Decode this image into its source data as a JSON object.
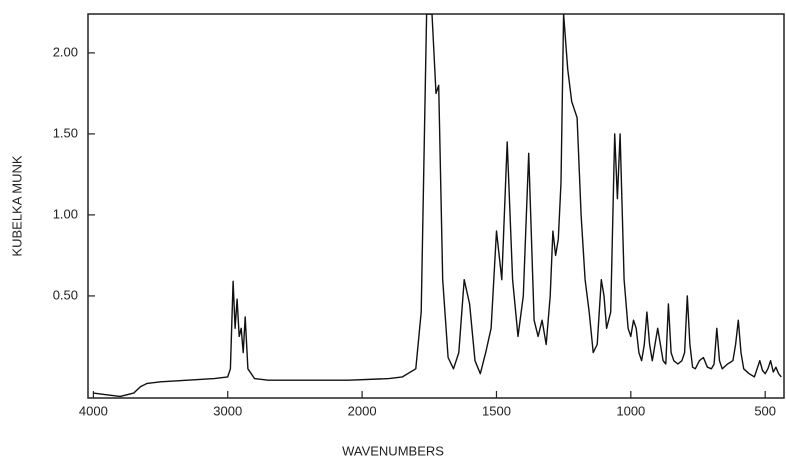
{
  "chart_data": {
    "type": "line",
    "x_label": "WAVENUMBERS",
    "y_label": "KUBELKA MUNK",
    "x": [
      4000,
      3900,
      3800,
      3700,
      3650,
      3600,
      3500,
      3300,
      3100,
      3000,
      2980,
      2960,
      2945,
      2930,
      2915,
      2900,
      2885,
      2870,
      2850,
      2800,
      2700,
      2400,
      2100,
      1900,
      1850,
      1800,
      1780,
      1760,
      1740,
      1725,
      1715,
      1700,
      1680,
      1660,
      1640,
      1620,
      1600,
      1580,
      1560,
      1540,
      1520,
      1500,
      1480,
      1460,
      1440,
      1420,
      1400,
      1380,
      1360,
      1345,
      1330,
      1315,
      1300,
      1290,
      1280,
      1270,
      1260,
      1250,
      1235,
      1220,
      1200,
      1185,
      1170,
      1155,
      1140,
      1125,
      1110,
      1100,
      1090,
      1075,
      1060,
      1050,
      1040,
      1025,
      1010,
      1000,
      990,
      980,
      970,
      960,
      950,
      940,
      930,
      920,
      900,
      890,
      880,
      870,
      860,
      850,
      840,
      825,
      810,
      800,
      790,
      780,
      770,
      760,
      745,
      730,
      715,
      700,
      690,
      680,
      670,
      660,
      640,
      620,
      610,
      600,
      590,
      580,
      560,
      540,
      530,
      520,
      510,
      500,
      490,
      480,
      470,
      460,
      450,
      440
    ],
    "values": [
      -0.1,
      -0.11,
      -0.12,
      -0.1,
      -0.06,
      -0.04,
      -0.03,
      -0.02,
      -0.01,
      0.0,
      0.05,
      0.59,
      0.3,
      0.48,
      0.25,
      0.3,
      0.15,
      0.37,
      0.05,
      -0.01,
      -0.02,
      -0.02,
      -0.02,
      -0.01,
      0.0,
      0.05,
      0.4,
      2.24,
      2.24,
      1.75,
      1.8,
      0.6,
      0.12,
      0.05,
      0.15,
      0.6,
      0.45,
      0.1,
      0.02,
      0.15,
      0.3,
      0.9,
      0.6,
      1.45,
      0.6,
      0.25,
      0.5,
      1.38,
      0.35,
      0.25,
      0.35,
      0.2,
      0.5,
      0.9,
      0.75,
      0.85,
      1.2,
      2.24,
      1.9,
      1.7,
      1.6,
      1.0,
      0.6,
      0.4,
      0.15,
      0.2,
      0.6,
      0.5,
      0.3,
      0.4,
      1.5,
      1.1,
      1.5,
      0.6,
      0.3,
      0.25,
      0.35,
      0.3,
      0.15,
      0.1,
      0.2,
      0.4,
      0.2,
      0.1,
      0.3,
      0.2,
      0.1,
      0.08,
      0.45,
      0.15,
      0.1,
      0.08,
      0.1,
      0.15,
      0.5,
      0.2,
      0.06,
      0.05,
      0.1,
      0.12,
      0.06,
      0.05,
      0.08,
      0.3,
      0.1,
      0.05,
      0.08,
      0.1,
      0.2,
      0.35,
      0.15,
      0.05,
      0.02,
      0.0,
      0.05,
      0.1,
      0.04,
      0.02,
      0.05,
      0.1,
      0.03,
      0.06,
      0.02,
      0.0
    ],
    "color": "#111111",
    "xlim": [
      4040,
      430
    ],
    "xticks": [
      4000,
      3000,
      2000,
      1500,
      1000,
      500
    ],
    "x_scale": {
      "break": 2000,
      "expansion": 2
    },
    "ylim": [
      -0.13,
      2.24
    ],
    "yticks": [
      {
        "value": 0.5,
        "label": "0.50"
      },
      {
        "value": 1.0,
        "label": "1.00"
      },
      {
        "value": 1.5,
        "label": "1.50"
      },
      {
        "value": 2.0,
        "label": "2.00"
      }
    ],
    "grid": false
  }
}
